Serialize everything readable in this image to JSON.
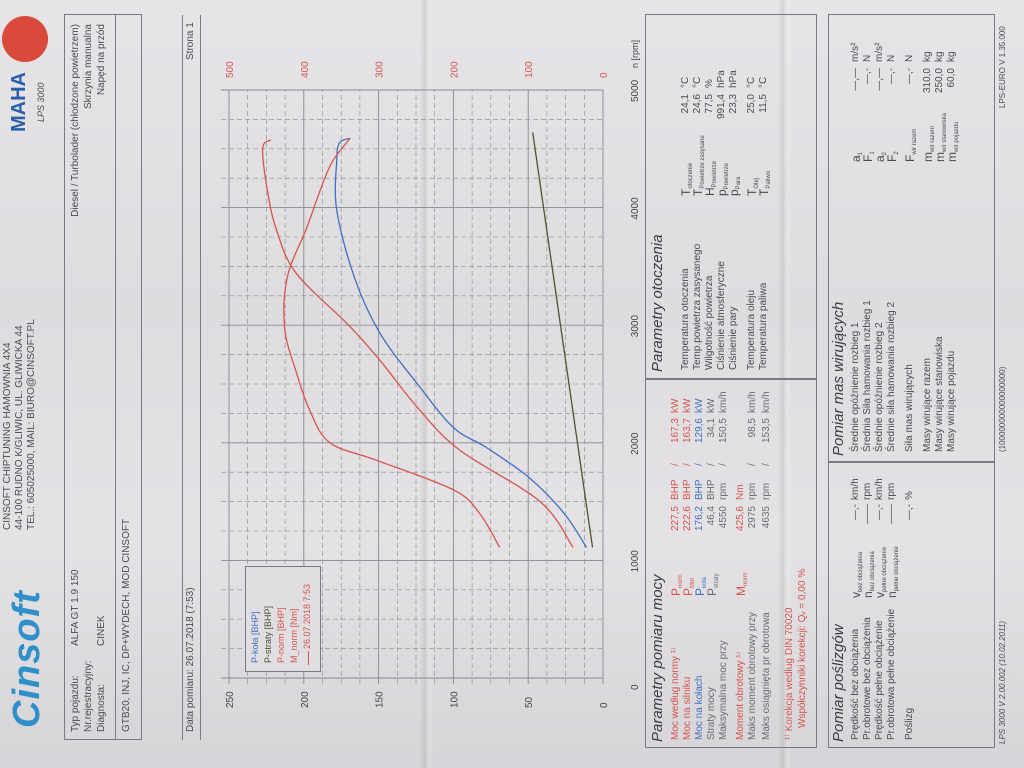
{
  "header": {
    "logo_text": "Cinsoft",
    "company_lines": [
      "CINSOFT CHIPTUNING HAMOWNIA 4X4",
      "44-100 RUDNO K/GLIWIC, UL. GLIWICKA 44",
      "TEL.: 605025000, MAIL: BIURO@CINSOFT.PL"
    ],
    "maha_logo": "MAHA",
    "maha_model": "LPS 3000"
  },
  "vehicle": {
    "type_label": "Typ pojazdu:",
    "type_value": "ALFA GT 1.9 150",
    "reg_label": "Nr.rejestracyjny:",
    "reg_value": "",
    "diag_label": "Diagnosta:",
    "diag_value": "CINEK",
    "engine": "Diesel / Turbolader (chłodzone powietrzem)",
    "gearbox": "Skrzynia manualna",
    "drive": "Napęd na przód",
    "notes": "GTB20, INJ, IC, DP+WYDECH, MOD CINSOFT"
  },
  "measure": {
    "date": "Data pomiaru: 26.07.2018 (7:53)",
    "page": "Strona 1"
  },
  "chart_data": {
    "type": "line",
    "xlabel": "n [rpm]",
    "xlim": [
      0,
      5000
    ],
    "x_ticks": [
      "0",
      "1000",
      "2000",
      "3000",
      "4000",
      "5000"
    ],
    "y_left_lim": [
      0,
      250
    ],
    "y_left_ticks": [
      "0",
      "50",
      "100",
      "150",
      "200",
      "250"
    ],
    "y_right_lim": [
      0,
      500
    ],
    "y_right_ticks": [
      "0",
      "100",
      "200",
      "300",
      "400",
      "500"
    ],
    "grid": true,
    "legend_position": "top-left",
    "legend": [
      {
        "label": "P-koła [BHP]",
        "color": "#3f6fc0"
      },
      {
        "label": "P-straty [BHP]",
        "color": "#4a5530"
      },
      {
        "label": "P-norm [BHP]",
        "color": "#d4544c"
      },
      {
        "label": "M_norm [Nm]",
        "color": "#d4544c"
      },
      {
        "label": "26.07.2018 7:53",
        "color": "#d4544c"
      }
    ],
    "series": [
      {
        "name": "P-koła [BHP]",
        "axis": "left",
        "color": "#3f6fc0",
        "x": [
          1110,
          1400,
          1700,
          1960,
          2130,
          2500,
          2930,
          3400,
          3980,
          4400,
          4550,
          4590
        ],
        "y": [
          11,
          26,
          49,
          78,
          100,
          124,
          149,
          166,
          178,
          178,
          176.2,
          169
        ]
      },
      {
        "name": "P-straty [BHP]",
        "axis": "left",
        "color": "#4a5530",
        "x": [
          1110,
          4640
        ],
        "y": [
          7,
          47
        ]
      },
      {
        "name": "P-norm [BHP]",
        "axis": "left",
        "color": "#d4544c",
        "x": [
          1110,
          1500,
          1940,
          2300,
          2700,
          3000,
          3440,
          3800,
          4120,
          4500,
          4575
        ],
        "y": [
          20,
          42,
          96,
          124,
          149,
          170,
          205,
          218,
          224,
          227.5,
          222
        ]
      },
      {
        "name": "M_norm [Nm]",
        "axis": "right",
        "color": "#d4544c",
        "x": [
          1110,
          1400,
          1600,
          1850,
          2000,
          2275,
          2600,
          2975,
          3410,
          3830,
          4200,
          4400,
          4590
        ],
        "y": [
          138,
          165,
          200,
          302,
          365,
          392,
          410,
          425.6,
          422,
          396,
          375,
          361,
          338
        ]
      }
    ]
  },
  "power": {
    "title": "Parametry pomiaru mocy",
    "rows": [
      {
        "label": "Moc według normy ¹⁾",
        "sym": "P",
        "sub": "norm",
        "v1": "227,5",
        "u1": "BHP",
        "sep": "/",
        "v2": "167,3",
        "u2": "kW",
        "cls": "red"
      },
      {
        "label": "Moc na silniku",
        "sym": "P",
        "sub": "Mot",
        "v1": "222,6",
        "u1": "BHP",
        "sep": "/",
        "v2": "163,7",
        "u2": "kW",
        "cls": "red"
      },
      {
        "label": "Moc na kołach",
        "sym": "P",
        "sub": "koła",
        "v1": "176,2",
        "u1": "BHP",
        "sep": "/",
        "v2": "129,6",
        "u2": "kW",
        "cls": "blue"
      },
      {
        "label": "Straty mocy",
        "sym": "P",
        "sub": "straty",
        "v1": "46,4",
        "u1": "BHP",
        "sep": "/",
        "v2": "34,1",
        "u2": "kW",
        "cls": "gray"
      },
      {
        "label": "Maksymalna moc przy",
        "sym": "",
        "sub": "",
        "v1": "4550",
        "u1": "rpm",
        "sep": "/",
        "v2": "150,5",
        "u2": "km/h",
        "cls": "gray"
      },
      {
        "label": "Moment obrotowy ¹⁾",
        "sym": "M",
        "sub": "norm",
        "v1": "425,6",
        "u1": "Nm",
        "sep": "",
        "v2": "",
        "u2": "",
        "cls": "red"
      },
      {
        "label": "Maks moment obrotowy przy",
        "sym": "",
        "sub": "",
        "v1": "2975",
        "u1": "rpm",
        "sep": "/",
        "v2": "98,5",
        "u2": "km/h",
        "cls": "gray"
      },
      {
        "label": "Maks osiągnięta pr obrotowa",
        "sym": "",
        "sub": "",
        "v1": "4635",
        "u1": "rpm",
        "sep": "/",
        "v2": "153,5",
        "u2": "km/h",
        "cls": "gray"
      }
    ],
    "correction": "¹⁾ Korekcja według DIN 70020",
    "coefficient": "Współczynniki korekcji: Qᵥ =  0,00 %"
  },
  "ambient": {
    "title": "Parametry otoczenia",
    "rows": [
      {
        "label": "Temperatura otoczenia",
        "sym": "T",
        "sub": "otoczenie",
        "v": "24,1",
        "u": "°C"
      },
      {
        "label": "Temp.powietrza zasysanego",
        "sym": "T",
        "sub": "Powietrze zasysane",
        "v": "24,6",
        "u": "°C"
      },
      {
        "label": "Wilgotność powietrza",
        "sym": "H",
        "sub": "Powietrze",
        "v": "77,5",
        "u": "%"
      },
      {
        "label": "Ciśnienie atmosferyczne",
        "sym": "p",
        "sub": "Powietrze",
        "v": "991,4",
        "u": "hPa"
      },
      {
        "label": "Ciśnienie pary",
        "sym": "p",
        "sub": "Para",
        "v": "23,3",
        "u": "hPa"
      },
      {
        "label": "Temperatura oleju",
        "sym": "T",
        "sub": "Olej",
        "v": "25,0",
        "u": "°C"
      },
      {
        "label": "Temperatura paliwa",
        "sym": "T",
        "sub": "Paliwo",
        "v": "11,5",
        "u": "°C"
      }
    ]
  },
  "slip": {
    "title": "Pomiar poślizgów",
    "rows": [
      {
        "label": "Prędkość bez obciążenia",
        "sym": "v",
        "sub": "bez obciążenia",
        "v": "—,-",
        "u": "km/h"
      },
      {
        "label": "Pr.obrotowe bez obciążenia",
        "sym": "n",
        "sub": "bez obciążenia",
        "v": "——",
        "u": "rpm"
      },
      {
        "label": "Prędkość pełne obciążenie",
        "sym": "v",
        "sub": "pełne obciążenie",
        "v": "—,-",
        "u": "km/h"
      },
      {
        "label": "Pr.obrotowa pełne obciążenie",
        "sym": "n",
        "sub": "pełne obciążenie",
        "v": "——",
        "u": "rpm"
      },
      {
        "label": "Poślizg",
        "sym": "",
        "sub": "",
        "v": "—,-",
        "u": "%"
      }
    ]
  },
  "masses": {
    "title": "Pomiar mas wirujących",
    "rows": [
      {
        "label": "Średnie opóźnienie rozbieg 1",
        "sym": "a",
        "sub": "1",
        "v": "—,—",
        "u": "m/s²"
      },
      {
        "label": "Średnia Siła hamowania rozbieg 1",
        "sym": "F",
        "sub": "1",
        "v": "—,-",
        "u": "N"
      },
      {
        "label": "Średnie opóźnienie rozbieg 2",
        "sym": "a",
        "sub": "2",
        "v": "—,—",
        "u": "m/s²"
      },
      {
        "label": "Średnie siła hamowania rozbieg 2",
        "sym": "F",
        "sub": "2",
        "v": "—,-",
        "u": "N"
      },
      {
        "label": "Siła mas wirujących",
        "sym": "F",
        "sub": "wir razem",
        "v": "—,-",
        "u": "N"
      },
      {
        "label": "Masy wirujące razem",
        "sym": "m",
        "sub": "wir razem",
        "v": "310,0",
        "u": "kg"
      },
      {
        "label": "Masy wirujące stanowiska",
        "sym": "m",
        "sub": "wir stanowiska",
        "v": "250,0",
        "u": "kg"
      },
      {
        "label": "Masy wirujące pojazdu",
        "sym": "m",
        "sub": "wir pojazdu",
        "v": "60,0",
        "u": "kg"
      }
    ]
  },
  "footer": {
    "left": "LPS 3000 V 2.00.002 (10.02.2011)",
    "middle": "(100000000000000000)",
    "right": "LPS-EURO V 1.35.000"
  }
}
